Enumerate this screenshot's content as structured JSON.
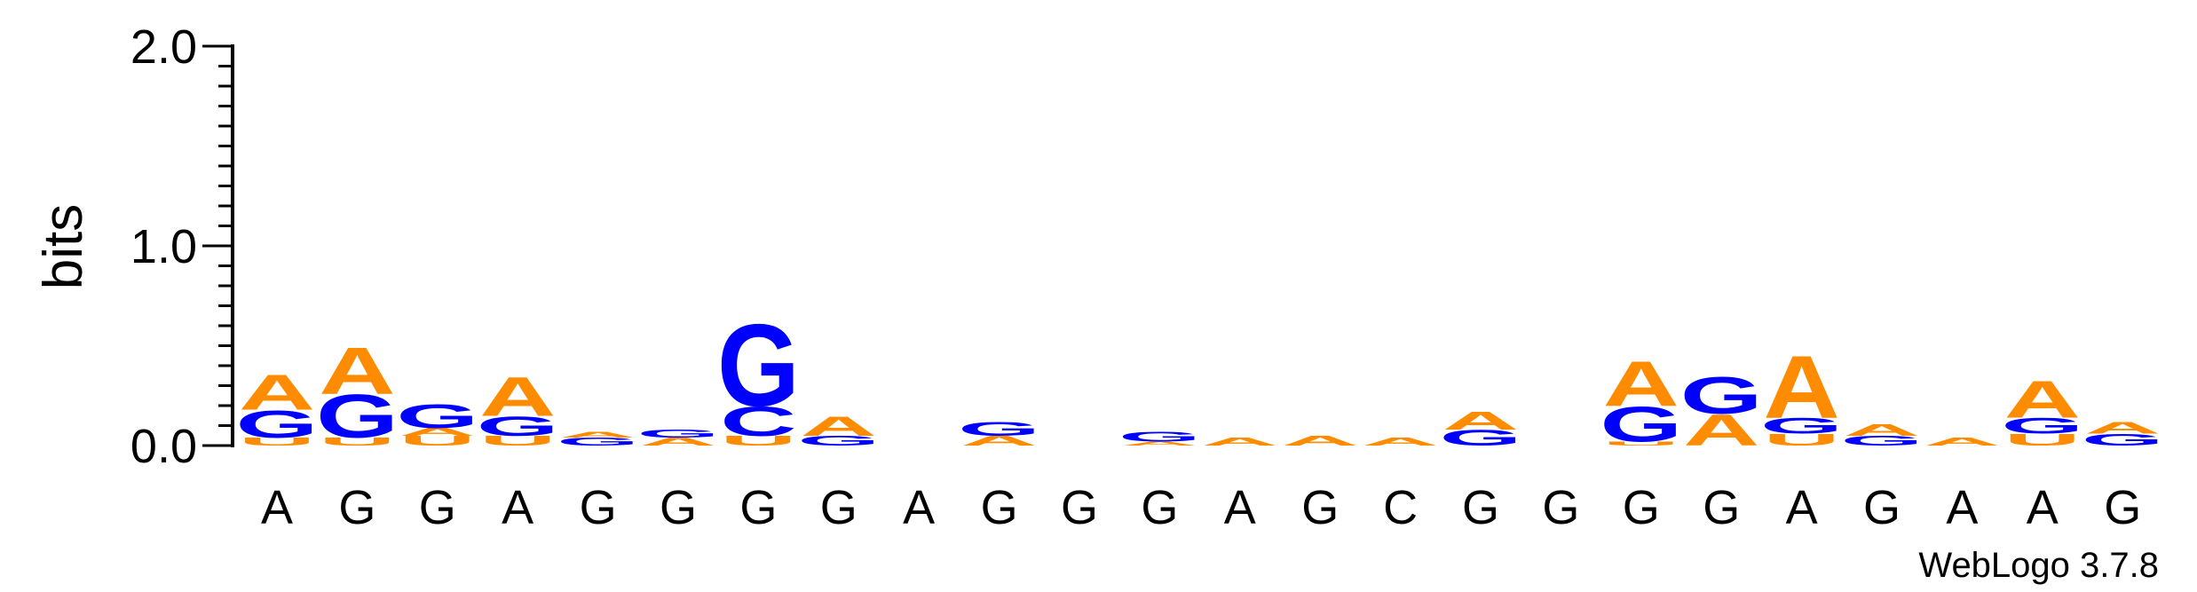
{
  "chart_data": {
    "type": "sequence-logo",
    "ylabel": "bits",
    "ylim": [
      0,
      2.0
    ],
    "yticks": [
      "0.0",
      "1.0",
      "2.0"
    ],
    "credit": "WebLogo 3.7.8",
    "colors": {
      "A": "#ff8c00",
      "G": "#0000ff",
      "C": "#0000ff",
      "U": "#ff8c00"
    },
    "consensus": [
      "A",
      "G",
      "G",
      "A",
      "G",
      "G",
      "G",
      "G",
      "A",
      "G",
      "G",
      "G",
      "A",
      "G",
      "C",
      "G",
      "G",
      "G",
      "G",
      "A",
      "G",
      "A",
      "A",
      "G"
    ],
    "columns": [
      [
        [
          "U",
          0.04
        ],
        [
          "G",
          0.14
        ],
        [
          "A",
          0.18
        ]
      ],
      [
        [
          "U",
          0.04
        ],
        [
          "G",
          0.22
        ],
        [
          "A",
          0.24
        ]
      ],
      [
        [
          "U",
          0.05
        ],
        [
          "A",
          0.04
        ],
        [
          "G",
          0.12
        ]
      ],
      [
        [
          "U",
          0.05
        ],
        [
          "G",
          0.1
        ],
        [
          "A",
          0.2
        ]
      ],
      [
        [
          "G",
          0.04
        ],
        [
          "A",
          0.03
        ]
      ],
      [
        [
          "A",
          0.04
        ],
        [
          "G",
          0.04
        ]
      ],
      [
        [
          "U",
          0.05
        ],
        [
          "C",
          0.15
        ],
        [
          "G",
          0.42
        ]
      ],
      [
        [
          "G",
          0.05
        ],
        [
          "A",
          0.1
        ]
      ],
      [],
      [
        [
          "A",
          0.05
        ],
        [
          "G",
          0.07
        ]
      ],
      [],
      [
        [
          "A",
          0.02
        ],
        [
          "G",
          0.05
        ]
      ],
      [
        [
          "A",
          0.04
        ]
      ],
      [
        [
          "A",
          0.05
        ]
      ],
      [
        [
          "A",
          0.04
        ]
      ],
      [
        [
          "G",
          0.08
        ],
        [
          "A",
          0.09
        ]
      ],
      [],
      [
        [
          "U",
          0.02
        ],
        [
          "G",
          0.18
        ],
        [
          "A",
          0.23
        ]
      ],
      [
        [
          "A",
          0.16
        ],
        [
          "G",
          0.19
        ]
      ],
      [
        [
          "U",
          0.06
        ],
        [
          "G",
          0.08
        ],
        [
          "A",
          0.32
        ]
      ],
      [
        [
          "G",
          0.05
        ],
        [
          "A",
          0.06
        ]
      ],
      [
        [
          "A",
          0.04
        ]
      ],
      [
        [
          "U",
          0.06
        ],
        [
          "G",
          0.08
        ],
        [
          "A",
          0.19
        ]
      ],
      [
        [
          "G",
          0.06
        ],
        [
          "A",
          0.06
        ]
      ]
    ]
  }
}
